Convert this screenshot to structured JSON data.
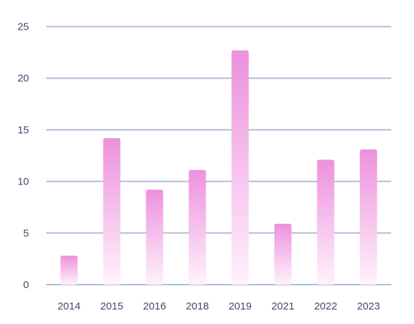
{
  "chart_data": {
    "type": "bar",
    "categories": [
      "2014",
      "2015",
      "2016",
      "2018",
      "2019",
      "2021",
      "2022",
      "2023"
    ],
    "values": [
      2.8,
      14.2,
      9.2,
      11.1,
      22.7,
      5.9,
      12.1,
      13.1
    ],
    "ylim": [
      0,
      25
    ],
    "yticks": [
      "0",
      "5",
      "10",
      "15",
      "20",
      "25"
    ],
    "title": "",
    "xlabel": "",
    "ylabel": "",
    "grid": true,
    "legend": "none",
    "colors": {
      "bar_top": "#ec91dd",
      "bar_bottom": "#fff2fb",
      "grid": "#aebdd8",
      "tick_text": "#3f4b6b"
    }
  }
}
